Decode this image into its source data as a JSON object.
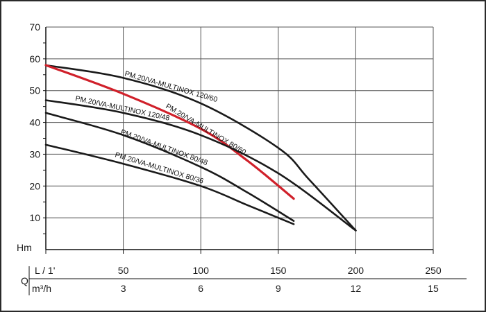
{
  "chart_data": {
    "type": "line",
    "ylabel": "Hm",
    "x_axis_label_flow": "Q",
    "x_axis_label_lpm": "L / 1'",
    "x_axis_label_m3h": "m³/h",
    "xlim": [
      0,
      250
    ],
    "ylim": [
      0,
      70
    ],
    "y_ticks": [
      "10",
      "20",
      "30",
      "40",
      "50",
      "60",
      "70"
    ],
    "x_ticks_lpm": [
      "50",
      "100",
      "150",
      "200",
      "250"
    ],
    "x_ticks_m3h": [
      "3",
      "6",
      "9",
      "12",
      "15"
    ],
    "grid": true,
    "series": [
      {
        "name": "PM.20/VA-MULTINOX 120/60",
        "color": "#1a1a1a",
        "points": [
          [
            0,
            58
          ],
          [
            50,
            54
          ],
          [
            100,
            46
          ],
          [
            150,
            32
          ],
          [
            170,
            22
          ],
          [
            200,
            6
          ]
        ]
      },
      {
        "name": "PM.20/VA-MULTINOX 80/60",
        "color": "#d0202a",
        "points": [
          [
            0,
            58
          ],
          [
            50,
            49
          ],
          [
            100,
            38
          ],
          [
            130,
            28
          ],
          [
            160,
            16
          ]
        ]
      },
      {
        "name": "PM.20/VA-MULTINOX 120/48",
        "color": "#1a1a1a",
        "points": [
          [
            0,
            47
          ],
          [
            50,
            43
          ],
          [
            100,
            36
          ],
          [
            150,
            24
          ],
          [
            200,
            6
          ]
        ]
      },
      {
        "name": "PM.20/VA-MULTINOX 80/48",
        "color": "#1a1a1a",
        "points": [
          [
            0,
            43
          ],
          [
            50,
            36
          ],
          [
            100,
            26
          ],
          [
            130,
            18
          ],
          [
            160,
            9
          ]
        ]
      },
      {
        "name": "PM.20/VA-MULTINOX 80/36",
        "color": "#1a1a1a",
        "points": [
          [
            0,
            33
          ],
          [
            50,
            27
          ],
          [
            100,
            20
          ],
          [
            130,
            14
          ],
          [
            160,
            8
          ]
        ]
      }
    ]
  }
}
